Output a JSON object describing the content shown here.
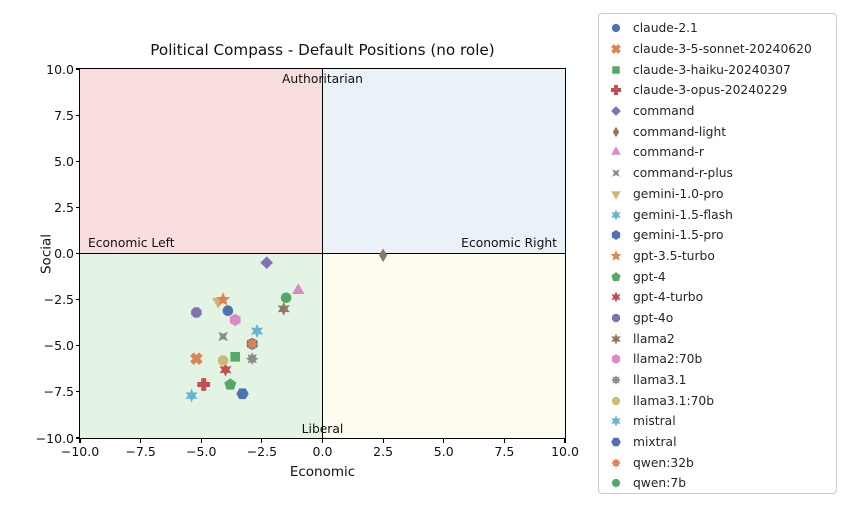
{
  "chart_data": {
    "type": "scatter",
    "title": "Political Compass - Default Positions (no role)",
    "x_axis": {
      "label": "Economic",
      "min": -10,
      "max": 10,
      "tick_values": [
        -10,
        -7.5,
        -5,
        -2.5,
        0,
        2.5,
        5,
        7.5,
        10
      ],
      "tick_labels": [
        "−10.0",
        "−7.5",
        "−5.0",
        "−2.5",
        "0.0",
        "2.5",
        "5.0",
        "7.5",
        "10.0"
      ]
    },
    "y_axis": {
      "label": "Social",
      "min": -10,
      "max": 10,
      "tick_values": [
        10,
        7.5,
        5,
        2.5,
        0,
        -2.5,
        -5,
        -7.5,
        -10
      ],
      "tick_labels": [
        "10.0",
        "7.5",
        "5.0",
        "2.5",
        "0.0",
        "−2.5",
        "−5.0",
        "−7.5",
        "−10.0"
      ]
    },
    "quadrants": {
      "top_left_color": "#f8dede",
      "top_right_color": "#eaf1f7",
      "bottom_left_color": "#e4f4e4",
      "bottom_right_color": "#fffcf0",
      "label_top": "Authoritarian",
      "label_bottom": "Liberal",
      "label_left": "Economic Left",
      "label_right": "Economic Right"
    },
    "legend_position": "right",
    "grid": false,
    "series": [
      {
        "name": "claude-2.1",
        "marker": "circle",
        "color": "#4c72b0",
        "x": -3.9,
        "y": -3.1
      },
      {
        "name": "claude-3-5-sonnet-20240620",
        "marker": "x-thick",
        "color": "#dd8452",
        "x": -5.2,
        "y": -5.7
      },
      {
        "name": "claude-3-haiku-20240307",
        "marker": "square",
        "color": "#55a868",
        "x": -3.6,
        "y": -5.6
      },
      {
        "name": "claude-3-opus-20240229",
        "marker": "plus-thick",
        "color": "#c44e52",
        "x": -4.9,
        "y": -7.1
      },
      {
        "name": "command",
        "marker": "diamond",
        "color": "#8172b3",
        "x": -2.3,
        "y": -0.5
      },
      {
        "name": "command-light",
        "marker": "thin-diamond",
        "color": "#937860",
        "x": 2.5,
        "y": -0.1
      },
      {
        "name": "command-r",
        "marker": "triangle-up",
        "color": "#da8bc3",
        "x": -1.0,
        "y": -2.0
      },
      {
        "name": "command-r-plus",
        "marker": "star4x",
        "color": "#8c8c8c",
        "x": -4.1,
        "y": -4.5
      },
      {
        "name": "gemini-1.0-pro",
        "marker": "triangle-down",
        "color": "#ccb974",
        "x": -4.3,
        "y": -2.6
      },
      {
        "name": "gemini-1.5-flash",
        "marker": "star6",
        "color": "#64b5cd",
        "x": -5.4,
        "y": -7.7
      },
      {
        "name": "gemini-1.5-pro",
        "marker": "hexagon",
        "color": "#4c72b0",
        "x": -2.9,
        "y": -4.9
      },
      {
        "name": "gpt-3.5-turbo",
        "marker": "star5",
        "color": "#dd8452",
        "x": -4.1,
        "y": -2.5
      },
      {
        "name": "gpt-4",
        "marker": "pentagon",
        "color": "#55a868",
        "x": -3.8,
        "y": -7.1
      },
      {
        "name": "gpt-4-turbo",
        "marker": "star6",
        "color": "#c44e52",
        "x": -4.0,
        "y": -6.3
      },
      {
        "name": "gpt-4o",
        "marker": "octagon",
        "color": "#8172b3",
        "x": -5.2,
        "y": -3.2
      },
      {
        "name": "llama2",
        "marker": "star6",
        "color": "#937860",
        "x": -1.6,
        "y": -3.0
      },
      {
        "name": "llama2:70b",
        "marker": "hexagon",
        "color": "#da8bc3",
        "x": -3.6,
        "y": -3.6
      },
      {
        "name": "llama3.1",
        "marker": "asterisk8",
        "color": "#8c8c8c",
        "x": -2.9,
        "y": -5.7
      },
      {
        "name": "llama3.1:70b",
        "marker": "circle",
        "color": "#ccb974",
        "x": -4.1,
        "y": -5.8
      },
      {
        "name": "mistral",
        "marker": "star6",
        "color": "#64b5cd",
        "x": -2.7,
        "y": -4.2
      },
      {
        "name": "mixtral",
        "marker": "hexagon-flat",
        "color": "#4c72b0",
        "x": -3.3,
        "y": -7.6
      },
      {
        "name": "qwen:32b",
        "marker": "asterisk8",
        "color": "#dd8452",
        "x": -2.9,
        "y": -4.9
      },
      {
        "name": "qwen:7b",
        "marker": "circle",
        "color": "#55a868",
        "x": -1.5,
        "y": -2.4
      }
    ]
  }
}
